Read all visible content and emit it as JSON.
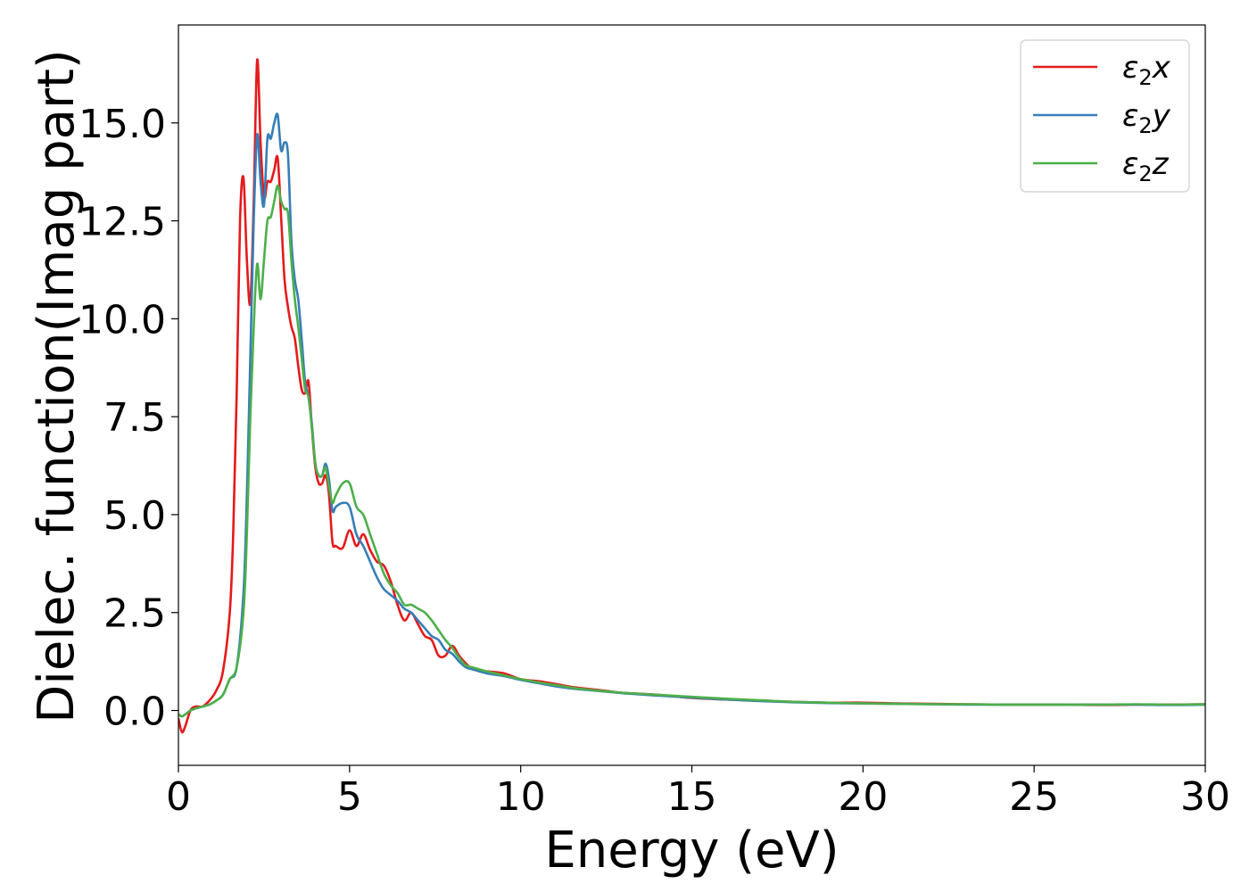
{
  "chart_data": {
    "type": "line",
    "title": "",
    "xlabel": "Energy (eV)",
    "ylabel": "Dielec. function(Imag part)",
    "xlim": [
      0,
      30
    ],
    "ylim": [
      -1.4,
      17.5
    ],
    "xticks": [
      0,
      5,
      10,
      15,
      20,
      25,
      30
    ],
    "xtick_labels": [
      "0",
      "5",
      "10",
      "15",
      "20",
      "25",
      "30"
    ],
    "yticks": [
      0,
      2.5,
      5,
      7.5,
      10,
      12.5,
      15
    ],
    "ytick_labels": [
      "0.0",
      "2.5",
      "5.0",
      "7.5",
      "10.0",
      "12.5",
      "15.0"
    ],
    "grid": false,
    "legend_position": "top-right",
    "series": [
      {
        "name": "ε₂x",
        "legend_base": "ε",
        "legend_sub": "2",
        "legend_suffix": "x",
        "color": "#e41a1c",
        "x": [
          0,
          0.1,
          0.2,
          0.35,
          0.5,
          0.7,
          0.9,
          1.1,
          1.3,
          1.5,
          1.6,
          1.7,
          1.8,
          1.9,
          2.0,
          2.1,
          2.2,
          2.3,
          2.4,
          2.5,
          2.6,
          2.7,
          2.8,
          2.9,
          3.0,
          3.1,
          3.2,
          3.3,
          3.4,
          3.5,
          3.6,
          3.7,
          3.8,
          3.9,
          4.0,
          4.1,
          4.2,
          4.3,
          4.4,
          4.5,
          4.6,
          4.8,
          5.0,
          5.2,
          5.4,
          5.6,
          5.8,
          6.0,
          6.2,
          6.4,
          6.6,
          6.8,
          7.0,
          7.2,
          7.4,
          7.6,
          7.8,
          8.0,
          8.2,
          8.4,
          8.6,
          9.0,
          9.5,
          10.0,
          10.5,
          11.0,
          11.5,
          12.0,
          12.5,
          13.0,
          14.0,
          15.0,
          16.0,
          17.0,
          18.0,
          19.0,
          20.0,
          21.0,
          22.0,
          23.0,
          24.0,
          25.0,
          26.0,
          27.0,
          28.0,
          29.0,
          30.0
        ],
        "y": [
          -0.2,
          -0.55,
          -0.4,
          0.0,
          0.1,
          0.1,
          0.25,
          0.5,
          1.0,
          2.5,
          4.5,
          8.0,
          12.5,
          13.6,
          11.5,
          10.4,
          13.0,
          16.6,
          14.5,
          13.1,
          13.5,
          13.5,
          13.8,
          14.1,
          12.6,
          11.0,
          10.3,
          9.8,
          9.5,
          8.8,
          8.2,
          8.1,
          8.4,
          7.2,
          6.2,
          5.8,
          5.8,
          6.0,
          5.5,
          4.3,
          4.2,
          4.15,
          4.6,
          4.2,
          4.5,
          4.1,
          3.8,
          3.7,
          3.3,
          2.7,
          2.3,
          2.5,
          2.2,
          1.9,
          1.8,
          1.4,
          1.4,
          1.65,
          1.4,
          1.2,
          1.05,
          1.0,
          0.95,
          0.8,
          0.75,
          0.68,
          0.6,
          0.55,
          0.5,
          0.45,
          0.4,
          0.32,
          0.28,
          0.25,
          0.22,
          0.2,
          0.2,
          0.18,
          0.17,
          0.16,
          0.15,
          0.15,
          0.15,
          0.14,
          0.15,
          0.15,
          0.16
        ]
      },
      {
        "name": "ε₂y",
        "legend_base": "ε",
        "legend_sub": "2",
        "legend_suffix": "y",
        "color": "#377eb8",
        "x": [
          0,
          0.1,
          0.2,
          0.35,
          0.5,
          0.7,
          0.9,
          1.1,
          1.3,
          1.5,
          1.7,
          1.9,
          2.0,
          2.1,
          2.2,
          2.3,
          2.4,
          2.5,
          2.6,
          2.7,
          2.8,
          2.9,
          3.0,
          3.1,
          3.2,
          3.3,
          3.4,
          3.5,
          3.6,
          3.7,
          3.8,
          3.9,
          4.0,
          4.1,
          4.2,
          4.3,
          4.4,
          4.5,
          4.6,
          4.8,
          5.0,
          5.2,
          5.4,
          5.6,
          5.8,
          6.0,
          6.2,
          6.4,
          6.6,
          6.8,
          7.0,
          7.2,
          7.4,
          7.6,
          7.8,
          8.0,
          8.2,
          8.4,
          8.6,
          9.0,
          9.5,
          10.0,
          10.5,
          11.0,
          11.5,
          12.0,
          12.5,
          13.0,
          14.0,
          15.0,
          16.0,
          17.0,
          18.0,
          19.0,
          20.0,
          21.0,
          22.0,
          23.0,
          24.0,
          25.0,
          26.0,
          27.0,
          28.0,
          29.0,
          30.0
        ],
        "y": [
          -0.1,
          -0.15,
          -0.1,
          0.0,
          0.05,
          0.1,
          0.15,
          0.25,
          0.4,
          0.8,
          1.1,
          3.0,
          5.5,
          9.0,
          12.5,
          14.7,
          13.5,
          12.9,
          14.6,
          14.6,
          15.0,
          15.2,
          14.3,
          14.5,
          14.2,
          12.0,
          11.0,
          10.5,
          9.5,
          8.4,
          8.0,
          7.3,
          6.3,
          6.0,
          6.0,
          6.3,
          5.9,
          5.1,
          5.2,
          5.3,
          5.2,
          4.5,
          4.2,
          3.8,
          3.4,
          3.1,
          2.95,
          2.8,
          2.6,
          2.5,
          2.3,
          2.1,
          1.9,
          1.8,
          1.55,
          1.45,
          1.25,
          1.1,
          1.05,
          0.95,
          0.88,
          0.78,
          0.7,
          0.62,
          0.56,
          0.52,
          0.48,
          0.44,
          0.38,
          0.33,
          0.28,
          0.24,
          0.21,
          0.19,
          0.18,
          0.17,
          0.16,
          0.15,
          0.15,
          0.15,
          0.15,
          0.15,
          0.15,
          0.14,
          0.15
        ]
      },
      {
        "name": "ε₂z",
        "legend_base": "ε",
        "legend_sub": "2",
        "legend_suffix": "z",
        "color": "#4daf4a",
        "x": [
          0,
          0.1,
          0.2,
          0.35,
          0.5,
          0.7,
          0.9,
          1.1,
          1.3,
          1.5,
          1.7,
          1.9,
          2.0,
          2.1,
          2.2,
          2.3,
          2.4,
          2.5,
          2.6,
          2.7,
          2.8,
          2.9,
          3.0,
          3.1,
          3.2,
          3.3,
          3.4,
          3.5,
          3.6,
          3.7,
          3.8,
          3.9,
          4.0,
          4.1,
          4.2,
          4.3,
          4.4,
          4.5,
          4.6,
          4.8,
          5.0,
          5.2,
          5.4,
          5.6,
          5.8,
          6.0,
          6.2,
          6.4,
          6.6,
          6.8,
          7.0,
          7.2,
          7.4,
          7.6,
          7.8,
          8.0,
          8.2,
          8.4,
          8.6,
          9.0,
          9.5,
          10.0,
          10.5,
          11.0,
          11.5,
          12.0,
          12.5,
          13.0,
          14.0,
          15.0,
          16.0,
          17.0,
          18.0,
          19.0,
          20.0,
          21.0,
          22.0,
          23.0,
          24.0,
          25.0,
          26.0,
          27.0,
          28.0,
          29.0,
          30.0
        ],
        "y": [
          -0.1,
          -0.15,
          -0.1,
          0.0,
          0.05,
          0.1,
          0.15,
          0.25,
          0.4,
          0.8,
          1.1,
          2.5,
          4.5,
          7.5,
          9.8,
          11.4,
          10.5,
          11.5,
          12.5,
          12.6,
          13.0,
          13.4,
          13.0,
          12.8,
          12.7,
          11.5,
          10.5,
          9.8,
          9.0,
          8.2,
          8.0,
          7.2,
          6.3,
          6.0,
          6.0,
          6.2,
          5.7,
          5.3,
          5.5,
          5.8,
          5.8,
          5.2,
          5.0,
          4.5,
          4.0,
          3.5,
          3.2,
          3.0,
          2.7,
          2.7,
          2.6,
          2.5,
          2.3,
          2.05,
          1.8,
          1.6,
          1.35,
          1.15,
          1.1,
          1.0,
          0.9,
          0.8,
          0.72,
          0.65,
          0.58,
          0.53,
          0.49,
          0.45,
          0.4,
          0.35,
          0.3,
          0.26,
          0.22,
          0.2,
          0.18,
          0.17,
          0.16,
          0.16,
          0.15,
          0.15,
          0.15,
          0.15,
          0.16,
          0.15,
          0.16
        ]
      }
    ]
  }
}
